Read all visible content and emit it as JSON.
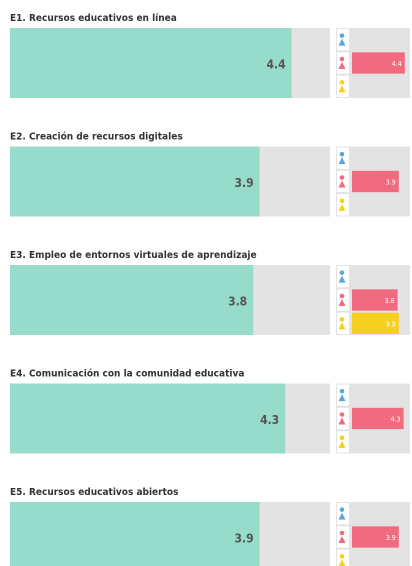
{
  "xlim": [
    0,
    5
  ],
  "track_color": "#e3e3e3",
  "bar_color": "#97dccb",
  "row_colors": [
    "#5aa7e0",
    "#f06b80",
    "#f5d11e"
  ],
  "sections": [
    {
      "title": "E1. Recursos educativos en línea",
      "value": 4.4,
      "side": [
        null,
        4.4,
        null
      ]
    },
    {
      "title": "E2. Creación de recursos digitales",
      "value": 3.9,
      "side": [
        null,
        3.9,
        null
      ]
    },
    {
      "title": "E3. Empleo de entornos virtuales de aprendizaje",
      "value": 3.8,
      "side": [
        null,
        3.8,
        3.9
      ]
    },
    {
      "title": "E4. Comunicación con la comunidad educativa",
      "value": 4.3,
      "side": [
        null,
        4.3,
        null
      ]
    },
    {
      "title": "E5. Recursos educativos abiertos",
      "value": 3.9,
      "side": [
        null,
        3.9,
        null
      ]
    }
  ]
}
